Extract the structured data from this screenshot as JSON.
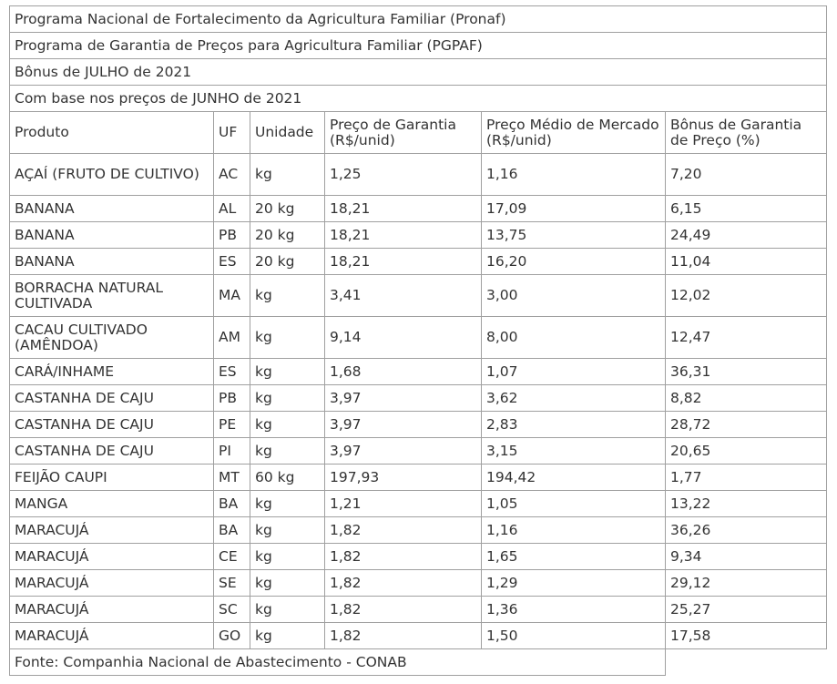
{
  "title_lines": [
    "Programa Nacional de Fortalecimento da Agricultura Familiar (Pronaf)",
    "Programa de Garantia de Preços para Agricultura Familiar (PGPAF)",
    "Bônus de JULHO de 2021",
    "Com base nos preços de JUNHO de 2021"
  ],
  "headers": {
    "produto": "Produto",
    "uf": "UF",
    "unidade": "Unidade",
    "preco_garantia": "Preço de Garantia (R$/unid)",
    "preco_medio": "Preço Médio de Mercado (R$/unid)",
    "bonus": "Bônus de Garantia de Preço (%)"
  },
  "rows": [
    {
      "produto": "AÇAÍ (FRUTO DE CULTIVO)",
      "uf": "AC",
      "unidade": "kg",
      "garantia": "1,25",
      "medio": "1,16",
      "bonus": "7,20"
    },
    {
      "produto": "BANANA",
      "uf": "AL",
      "unidade": "20 kg",
      "garantia": "18,21",
      "medio": "17,09",
      "bonus": "6,15"
    },
    {
      "produto": "BANANA",
      "uf": "PB",
      "unidade": "20 kg",
      "garantia": "18,21",
      "medio": "13,75",
      "bonus": "24,49"
    },
    {
      "produto": "BANANA",
      "uf": "ES",
      "unidade": "20 kg",
      "garantia": "18,21",
      "medio": "16,20",
      "bonus": "11,04"
    },
    {
      "produto": "BORRACHA NATURAL CULTIVADA",
      "uf": "MA",
      "unidade": "kg",
      "garantia": "3,41",
      "medio": "3,00",
      "bonus": "12,02"
    },
    {
      "produto": "CACAU CULTIVADO (AMÊNDOA)",
      "uf": "AM",
      "unidade": "kg",
      "garantia": "9,14",
      "medio": "8,00",
      "bonus": "12,47"
    },
    {
      "produto": "CARÁ/INHAME",
      "uf": "ES",
      "unidade": "kg",
      "garantia": "1,68",
      "medio": "1,07",
      "bonus": "36,31"
    },
    {
      "produto": "CASTANHA DE CAJU",
      "uf": "PB",
      "unidade": "kg",
      "garantia": "3,97",
      "medio": "3,62",
      "bonus": "8,82"
    },
    {
      "produto": "CASTANHA DE CAJU",
      "uf": "PE",
      "unidade": "kg",
      "garantia": "3,97",
      "medio": "2,83",
      "bonus": "28,72"
    },
    {
      "produto": "CASTANHA DE CAJU",
      "uf": "PI",
      "unidade": "kg",
      "garantia": "3,97",
      "medio": "3,15",
      "bonus": "20,65"
    },
    {
      "produto": "FEIJÃO CAUPI",
      "uf": "MT",
      "unidade": "60 kg",
      "garantia": "197,93",
      "medio": "194,42",
      "bonus": "1,77"
    },
    {
      "produto": "MANGA",
      "uf": "BA",
      "unidade": "kg",
      "garantia": "1,21",
      "medio": "1,05",
      "bonus": "13,22"
    },
    {
      "produto": "MARACUJÁ",
      "uf": "BA",
      "unidade": "kg",
      "garantia": "1,82",
      "medio": "1,16",
      "bonus": "36,26"
    },
    {
      "produto": "MARACUJÁ",
      "uf": "CE",
      "unidade": "kg",
      "garantia": "1,82",
      "medio": "1,65",
      "bonus": "9,34"
    },
    {
      "produto": "MARACUJÁ",
      "uf": "SE",
      "unidade": "kg",
      "garantia": "1,82",
      "medio": "1,29",
      "bonus": "29,12"
    },
    {
      "produto": "MARACUJÁ",
      "uf": "SC",
      "unidade": "kg",
      "garantia": "1,82",
      "medio": "1,36",
      "bonus": "25,27"
    },
    {
      "produto": "MARACUJÁ",
      "uf": "GO",
      "unidade": "kg",
      "garantia": "1,82",
      "medio": "1,50",
      "bonus": "17,58"
    }
  ],
  "footer": "Fonte: Companhia Nacional de Abastecimento - CONAB"
}
